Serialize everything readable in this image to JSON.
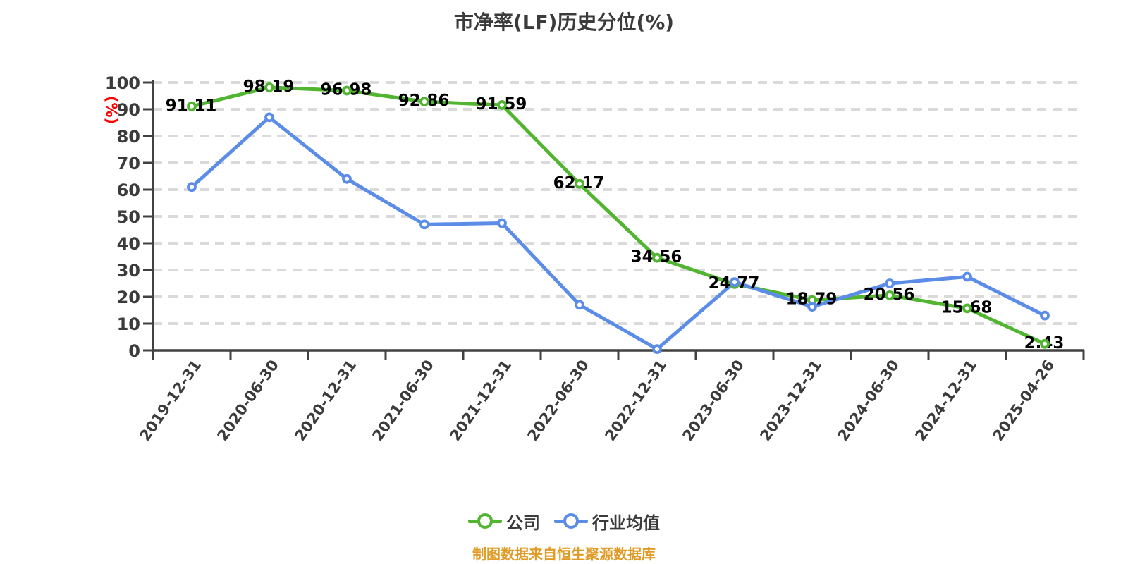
{
  "title": "市净率(LF)历史分位(%)",
  "y_unit_label": "(%)",
  "footer_note": "制图数据来自恒生聚源数据库",
  "legend": [
    {
      "label": "公司",
      "color": "#52b531"
    },
    {
      "label": "行业均值",
      "color": "#5b8de8"
    }
  ],
  "colors": {
    "company_line": "#52b531",
    "industry_line": "#5b8de8",
    "title_text": "#3b3b3b",
    "axis": "#414141",
    "grid": "#dadada",
    "data_label": "#000000",
    "tick_text": "#3b3b3b",
    "unit_label": "#ff0000",
    "footer_text": "#e09b26",
    "marker_fill": "#ffffff"
  },
  "chart_data": {
    "type": "line",
    "x": [
      "2019-12-31",
      "2020-06-30",
      "2020-12-31",
      "2021-06-30",
      "2021-12-31",
      "2022-06-30",
      "2022-12-31",
      "2023-06-30",
      "2023-12-31",
      "2024-06-30",
      "2024-12-31",
      "2025-04-26"
    ],
    "series": [
      {
        "name": "公司",
        "color": "#52b531",
        "values": [
          91.11,
          98.19,
          96.98,
          92.86,
          91.59,
          62.17,
          34.56,
          24.77,
          18.79,
          20.56,
          15.68,
          2.43
        ],
        "data_labels": [
          "91.11",
          "98.19",
          "96.98",
          "92.86",
          "91.59",
          "62.17",
          "34.56",
          "24.77",
          "18.79",
          "20.56",
          "15.68",
          "2.43"
        ]
      },
      {
        "name": "行业均值",
        "color": "#5b8de8",
        "values": [
          61,
          87,
          64,
          47,
          47.5,
          17,
          0.5,
          25.5,
          16.3,
          25,
          27.5,
          13
        ],
        "data_labels": null
      }
    ],
    "ylim": [
      0,
      100
    ],
    "y_tick_step": 10,
    "grid": "horizontal-dashed",
    "legend_position": "bottom"
  }
}
